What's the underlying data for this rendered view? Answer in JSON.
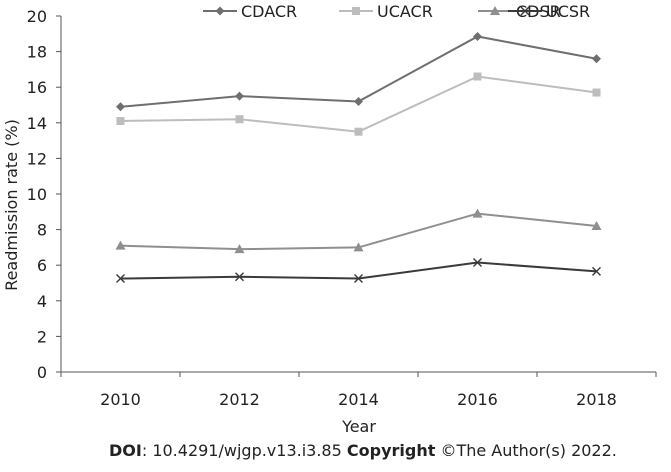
{
  "chart_data": {
    "type": "line",
    "xlabel": "Year",
    "ylabel": "Readmission rate (%)",
    "ylim": [
      0,
      20
    ],
    "yticks": [
      0,
      2,
      4,
      6,
      8,
      10,
      12,
      14,
      16,
      18,
      20
    ],
    "categories": [
      "2010",
      "2012",
      "2014",
      "2016",
      "2018"
    ],
    "grid": false,
    "legend_position": "top",
    "series": [
      {
        "name": "CDACR",
        "marker": "diamond",
        "color": "#6f6f6f",
        "values": [
          14.9,
          15.5,
          15.2,
          18.85,
          17.6
        ]
      },
      {
        "name": "UCACR",
        "marker": "square",
        "color": "#bdbdbd",
        "values": [
          14.1,
          14.2,
          13.5,
          16.6,
          15.7
        ]
      },
      {
        "name": "CDSR",
        "marker": "triangle",
        "color": "#8f8f8f",
        "values": [
          7.1,
          6.9,
          7.0,
          8.9,
          8.2
        ]
      },
      {
        "name": "UCSR",
        "marker": "x",
        "color": "#3a3a3a",
        "values": [
          5.25,
          5.35,
          5.25,
          6.15,
          5.65
        ]
      }
    ]
  },
  "footer": {
    "doi_label": "DOI",
    "doi_value": ": 10.4291/wjgp.v13.i3.85 ",
    "copyright_label": "Copyright",
    "copyright_value": " ©The Author(s) 2022."
  }
}
